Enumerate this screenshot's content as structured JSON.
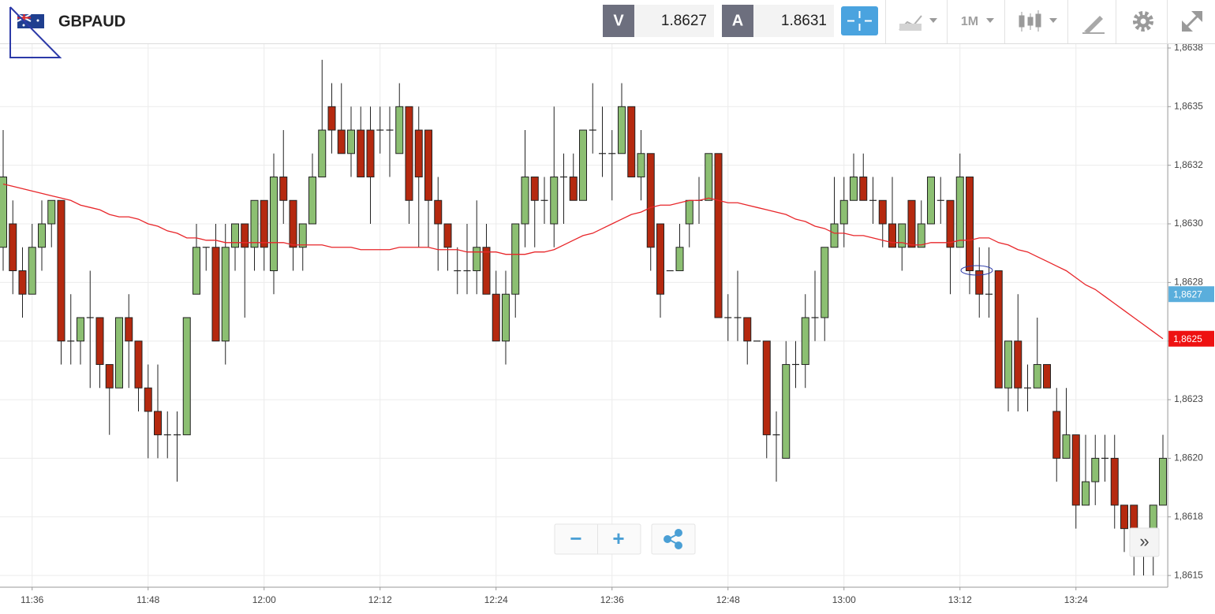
{
  "header": {
    "symbol": "GBPAUD",
    "bid_label": "V",
    "bid": 1.8627,
    "ask_label": "A",
    "ask": 1.8631,
    "timeframe": "1M"
  },
  "zoom_controls": {
    "zoom_out": "−",
    "zoom_in": "+"
  },
  "scroll_button": "»",
  "chart_data": {
    "type": "candlestick",
    "up_color": "#8cbf72",
    "down_color": "#b5290f",
    "line_color": "#e8262a",
    "grid": true,
    "categories": [
      null,
      null,
      null,
      "11:36",
      null,
      null,
      null,
      null,
      null,
      null,
      null,
      null,
      null,
      null,
      null,
      "11:48",
      null,
      null,
      null,
      null,
      null,
      null,
      null,
      null,
      null,
      null,
      null,
      "12:00",
      null,
      null,
      null,
      null,
      null,
      null,
      null,
      null,
      null,
      null,
      null,
      "12:12",
      null,
      null,
      null,
      null,
      null,
      null,
      null,
      null,
      null,
      null,
      null,
      "12:24",
      null,
      null,
      null,
      null,
      null,
      null,
      null,
      null,
      null,
      null,
      null,
      "12:36",
      null,
      null,
      null,
      null,
      null,
      null,
      null,
      null,
      null,
      null,
      null,
      "12:48",
      null,
      null,
      null,
      null,
      null,
      null,
      null,
      null,
      null,
      null,
      null,
      "13:00",
      null,
      null,
      null,
      null,
      null,
      null,
      null,
      null,
      null,
      null,
      null,
      "13:12",
      null,
      null,
      null,
      null,
      null,
      null,
      null,
      null,
      null,
      null,
      null,
      "13:24",
      null,
      null,
      null,
      null,
      null,
      null,
      null,
      null,
      null
    ],
    "open": [
      1.8629,
      1.863,
      1.8628,
      1.8627,
      1.8629,
      1.863,
      1.8631,
      1.8625,
      1.8625,
      1.8626,
      1.8626,
      1.8624,
      1.8623,
      1.8626,
      1.8625,
      1.8623,
      1.8622,
      1.8621,
      1.8621,
      1.8621,
      1.8627,
      1.8629,
      1.8629,
      1.8625,
      1.8629,
      1.863,
      1.8629,
      1.8631,
      1.8628,
      1.8632,
      1.8631,
      1.8629,
      1.863,
      1.8632,
      1.8635,
      1.8634,
      1.8633,
      1.8634,
      1.8634,
      1.8634,
      1.8634,
      1.8633,
      1.8635,
      1.8634,
      1.8634,
      1.8631,
      1.863,
      1.8628,
      1.8628,
      1.8628,
      1.8629,
      1.8627,
      1.8625,
      1.8627,
      1.863,
      1.8632,
      1.8631,
      1.863,
      1.8632,
      1.8632,
      1.8631,
      1.8634,
      1.8633,
      1.8633,
      1.8633,
      1.8635,
      1.8632,
      1.8633,
      1.863,
      1.8628,
      1.8628,
      1.863,
      1.8631,
      1.8631,
      1.8633,
      1.8626,
      1.8626,
      1.8626,
      1.8625,
      1.8625,
      1.8621,
      1.862,
      1.8624,
      1.8624,
      1.8626,
      1.8626,
      1.8629,
      1.863,
      1.8631,
      1.8632,
      1.8631,
      1.8631,
      1.863,
      1.8629,
      1.8631,
      1.8629,
      1.863,
      1.8631,
      1.8631,
      1.8629,
      1.8632,
      1.8628,
      1.8627,
      1.8628,
      1.8623,
      1.8625,
      1.8623,
      1.8623,
      1.8624,
      1.8622,
      1.862,
      1.8621,
      1.8618,
      1.8619,
      1.862,
      1.862,
      1.8618,
      1.8618,
      1.8617,
      1.8617,
      1.8618
    ],
    "high": [
      1.8634,
      1.8631,
      1.8629,
      1.863,
      1.8631,
      1.8631,
      1.8631,
      1.8627,
      1.8626,
      1.8628,
      1.8626,
      1.8624,
      1.8626,
      1.8627,
      1.8625,
      1.8624,
      1.8624,
      1.8622,
      1.8622,
      1.8626,
      1.863,
      1.8629,
      1.863,
      1.863,
      1.863,
      1.863,
      1.8631,
      1.8631,
      1.8633,
      1.8634,
      1.8631,
      1.863,
      1.8633,
      1.8637,
      1.8636,
      1.8636,
      1.8635,
      1.8635,
      1.8635,
      1.8635,
      1.8635,
      1.8636,
      1.8635,
      1.8635,
      1.8634,
      1.8632,
      1.863,
      1.8629,
      1.863,
      1.8631,
      1.863,
      1.8628,
      1.8628,
      1.863,
      1.8634,
      1.8632,
      1.8632,
      1.8635,
      1.8633,
      1.8633,
      1.8634,
      1.8636,
      1.8635,
      1.8634,
      1.8636,
      1.8635,
      1.8634,
      1.8633,
      1.863,
      1.8628,
      1.863,
      1.8631,
      1.8632,
      1.8633,
      1.8633,
      1.8627,
      1.8628,
      1.8626,
      1.8625,
      1.8625,
      1.8622,
      1.8625,
      1.8625,
      1.8627,
      1.8628,
      1.8629,
      1.8632,
      1.8632,
      1.8633,
      1.8633,
      1.8632,
      1.8631,
      1.8632,
      1.863,
      1.8631,
      1.8631,
      1.8632,
      1.8632,
      1.8631,
      1.8633,
      1.8632,
      1.8629,
      1.8629,
      1.8628,
      1.8625,
      1.8627,
      1.8624,
      1.8626,
      1.8624,
      1.8623,
      1.8623,
      1.8621,
      1.8621,
      1.8621,
      1.8621,
      1.8621,
      1.8618,
      1.8618,
      1.8617,
      1.8618,
      1.8621
    ],
    "low": [
      1.8628,
      1.8627,
      1.8626,
      1.8627,
      1.8628,
      1.8629,
      1.8624,
      1.8624,
      1.8624,
      1.8623,
      1.8623,
      1.8621,
      1.8623,
      1.8623,
      1.8622,
      1.862,
      1.862,
      1.862,
      1.8619,
      1.8621,
      1.8627,
      1.8628,
      1.8625,
      1.8624,
      1.8628,
      1.8626,
      1.8628,
      1.8628,
      1.8627,
      1.863,
      1.8628,
      1.8628,
      1.863,
      1.8632,
      1.8633,
      1.8633,
      1.8632,
      1.8632,
      1.863,
      1.8633,
      1.8632,
      1.8633,
      1.863,
      1.8629,
      1.8629,
      1.8628,
      1.8628,
      1.8627,
      1.8627,
      1.8627,
      1.8627,
      1.8625,
      1.8624,
      1.8626,
      1.8629,
      1.8629,
      1.863,
      1.8629,
      1.863,
      1.8631,
      1.8631,
      1.8633,
      1.8632,
      1.8631,
      1.8633,
      1.8632,
      1.8631,
      1.8628,
      1.8626,
      1.8628,
      1.8628,
      1.8629,
      1.863,
      1.8631,
      1.8626,
      1.8625,
      1.8625,
      1.8624,
      1.8625,
      1.862,
      1.8619,
      1.862,
      1.8623,
      1.8623,
      1.8625,
      1.8625,
      1.8629,
      1.8629,
      1.8631,
      1.8631,
      1.863,
      1.8629,
      1.8629,
      1.8628,
      1.8629,
      1.8629,
      1.863,
      1.863,
      1.8627,
      1.8629,
      1.8627,
      1.8626,
      1.8626,
      1.8623,
      1.8622,
      1.8622,
      1.8622,
      1.8623,
      1.8623,
      1.8619,
      1.862,
      1.8617,
      1.8618,
      1.8618,
      1.8619,
      1.8617,
      1.8616,
      1.8615,
      1.8615,
      1.8615,
      1.8618
    ],
    "close": [
      1.8632,
      1.8628,
      1.8627,
      1.8629,
      1.863,
      1.8631,
      1.8625,
      1.8625,
      1.8626,
      1.8626,
      1.8624,
      1.8623,
      1.8626,
      1.8625,
      1.8623,
      1.8622,
      1.8621,
      1.8621,
      1.8621,
      1.8626,
      1.8629,
      1.8629,
      1.8625,
      1.8629,
      1.863,
      1.8629,
      1.8631,
      1.8629,
      1.8632,
      1.8631,
      1.8629,
      1.863,
      1.8632,
      1.8634,
      1.8634,
      1.8633,
      1.8634,
      1.8632,
      1.8632,
      1.8634,
      1.8634,
      1.8635,
      1.8631,
      1.8632,
      1.8631,
      1.863,
      1.8629,
      1.8628,
      1.8628,
      1.8629,
      1.8627,
      1.8625,
      1.8627,
      1.863,
      1.8632,
      1.8631,
      1.8631,
      1.8632,
      1.8632,
      1.8631,
      1.8634,
      1.8634,
      1.8633,
      1.8633,
      1.8635,
      1.8632,
      1.8633,
      1.8629,
      1.8627,
      1.8628,
      1.8629,
      1.8631,
      1.8631,
      1.8633,
      1.8626,
      1.8626,
      1.8626,
      1.8625,
      1.8625,
      1.8621,
      1.8621,
      1.8624,
      1.8624,
      1.8626,
      1.8626,
      1.8629,
      1.863,
      1.8631,
      1.8632,
      1.8631,
      1.8631,
      1.863,
      1.8629,
      1.863,
      1.8629,
      1.863,
      1.8632,
      1.8631,
      1.8629,
      1.8632,
      1.8628,
      1.8627,
      1.8627,
      1.8623,
      1.8625,
      1.8623,
      1.8623,
      1.8624,
      1.8623,
      1.862,
      1.8621,
      1.8618,
      1.8619,
      1.862,
      1.862,
      1.8618,
      1.8617,
      1.8617,
      1.8617,
      1.8618,
      1.862
    ],
    "line_values": [
      1.86317,
      1.86316,
      1.86315,
      1.86314,
      1.86313,
      1.86312,
      1.86311,
      1.8631,
      1.86308,
      1.86307,
      1.86306,
      1.86304,
      1.86303,
      1.86303,
      1.86302,
      1.863,
      1.86299,
      1.86297,
      1.86296,
      1.86294,
      1.86294,
      1.86293,
      1.86293,
      1.86292,
      1.86292,
      1.86292,
      1.86292,
      1.86292,
      1.86292,
      1.86292,
      1.86291,
      1.86291,
      1.86291,
      1.86291,
      1.8629,
      1.8629,
      1.8629,
      1.86289,
      1.86289,
      1.86289,
      1.86289,
      1.8629,
      1.8629,
      1.8629,
      1.8629,
      1.86289,
      1.86289,
      1.86289,
      1.86288,
      1.86288,
      1.86288,
      1.86288,
      1.86287,
      1.86287,
      1.86287,
      1.86288,
      1.86288,
      1.86289,
      1.86291,
      1.86293,
      1.86295,
      1.86296,
      1.86298,
      1.863,
      1.86302,
      1.86304,
      1.86305,
      1.86307,
      1.86308,
      1.86308,
      1.86309,
      1.8631,
      1.8631,
      1.86311,
      1.8631,
      1.86309,
      1.86309,
      1.86308,
      1.86307,
      1.86306,
      1.86305,
      1.86304,
      1.86302,
      1.86301,
      1.86299,
      1.86298,
      1.86296,
      1.86296,
      1.86295,
      1.86295,
      1.86294,
      1.86293,
      1.86292,
      1.86292,
      1.86291,
      1.86291,
      1.86292,
      1.86292,
      1.86292,
      1.86293,
      1.86293,
      1.86294,
      1.86294,
      1.86292,
      1.86291,
      1.86289,
      1.86288,
      1.86286,
      1.86284,
      1.86282,
      1.8628,
      1.86277,
      1.86274,
      1.86272,
      1.86269,
      1.86266,
      1.86263,
      1.8626,
      1.86257,
      1.86254,
      1.86251
    ],
    "ylim": [
      1.86145,
      1.86377
    ],
    "yticks": [
      {
        "value": 1.8615,
        "label": "1,8615"
      },
      {
        "value": 1.86175,
        "label": "1,8618"
      },
      {
        "value": 1.862,
        "label": "1,8620"
      },
      {
        "value": 1.86225,
        "label": "1,8623"
      },
      {
        "value": 1.8625,
        "label": "1,8625"
      },
      {
        "value": 1.86275,
        "label": "1,8628"
      },
      {
        "value": 1.863,
        "label": "1,8630"
      },
      {
        "value": 1.86325,
        "label": "1,8632"
      },
      {
        "value": 1.8635,
        "label": "1,8635"
      },
      {
        "value": 1.86375,
        "label": "1,8638"
      }
    ],
    "price_tags": [
      {
        "value": 1.8627,
        "label": "1,8627",
        "color": "#5aaedc"
      },
      {
        "value": 1.86251,
        "label": "1,8625",
        "color": "#ee1111"
      }
    ]
  }
}
